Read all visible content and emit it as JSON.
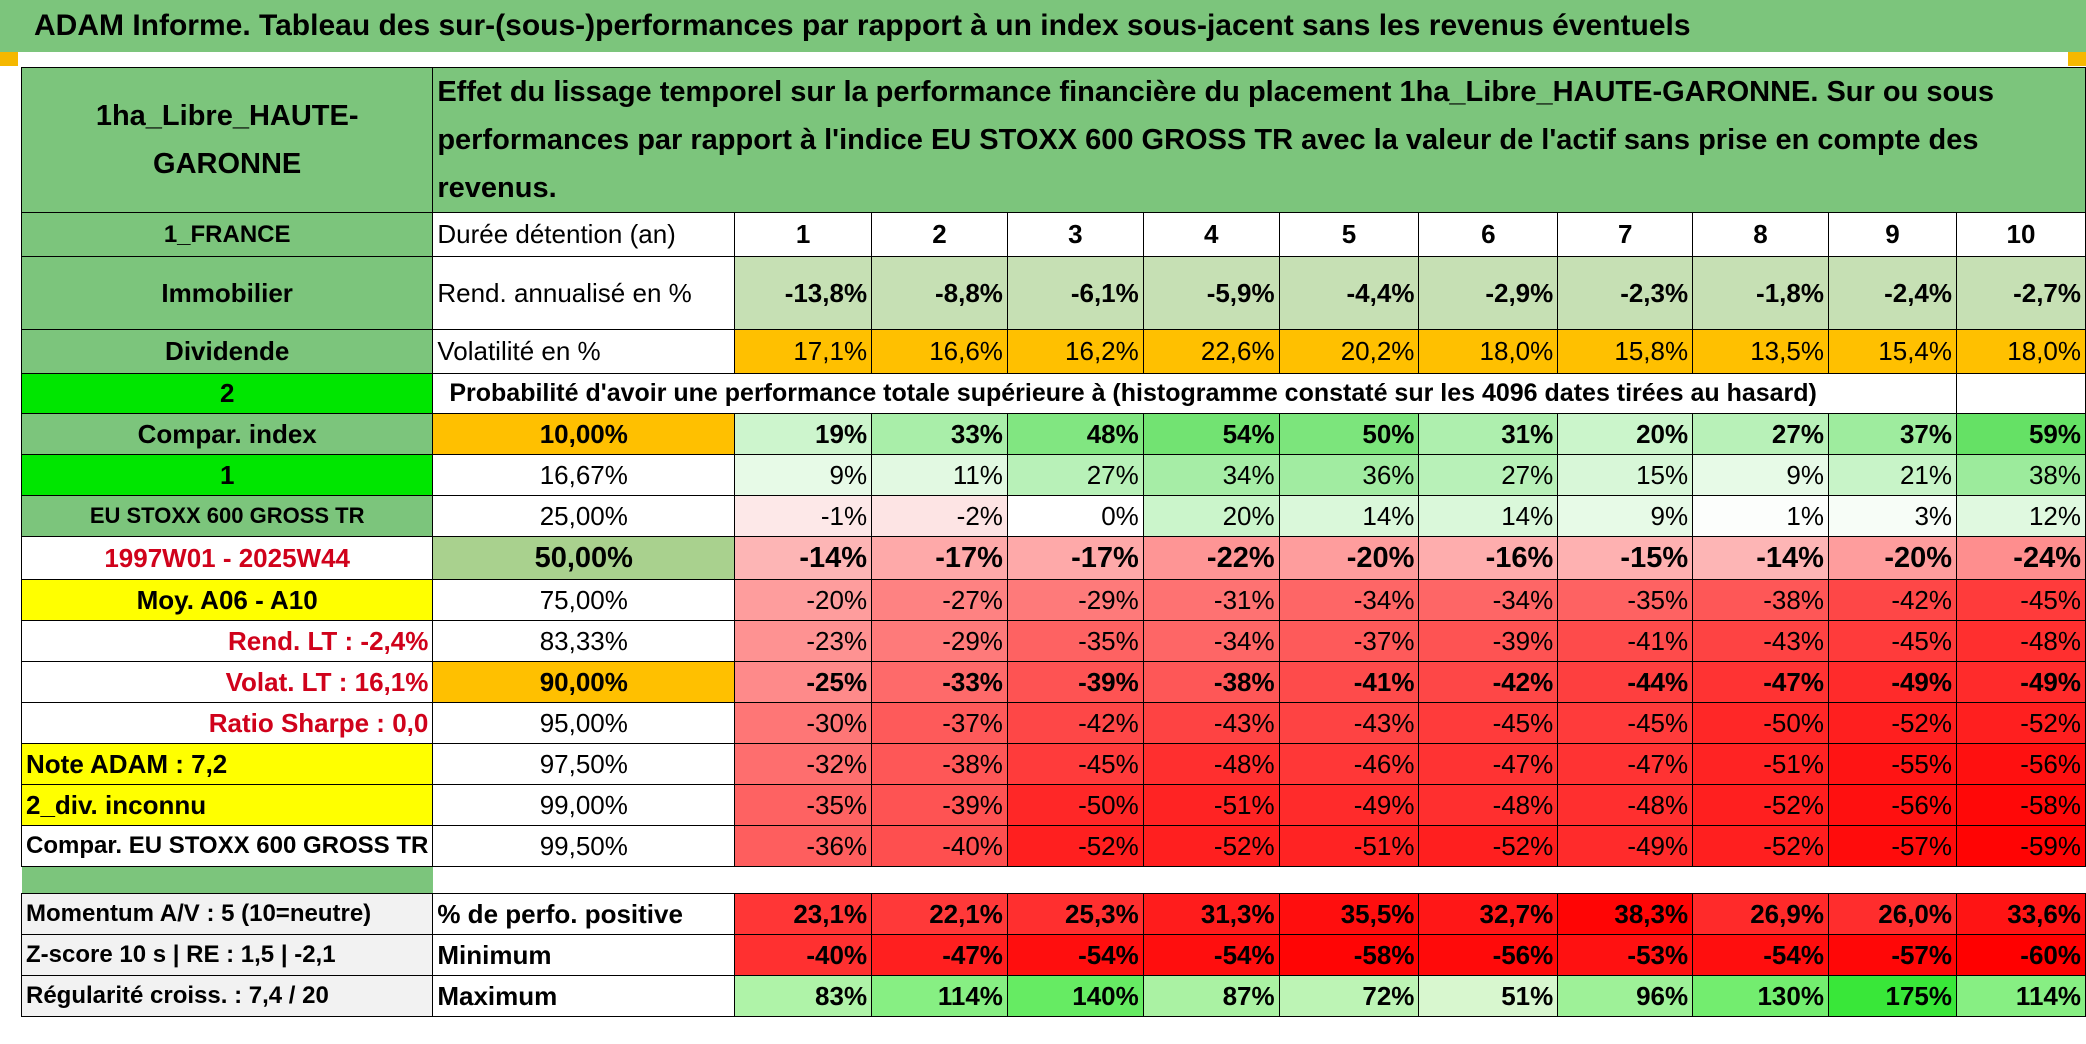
{
  "title": "ADAM Informe. Tableau des sur-(sous-)performances par rapport à un index sous-jacent sans les revenus éventuels",
  "header": {
    "fund_name": "1ha_Libre_HAUTE-GARONNE",
    "description": "Effet du lissage temporel sur la performance financière du placement 1ha_Libre_HAUTE-GARONNE. Sur ou sous performances par rapport à l'indice EU STOXX 600 GROSS TR avec la valeur de l'actif sans prise en compte des revenus."
  },
  "left": {
    "country": "1_FRANCE",
    "asset_class": "Immobilier",
    "income_type": "Dividende",
    "compar_code": "2",
    "compar_index_label": "Compar. index",
    "index_code": "1",
    "index_name": "EU STOXX 600 GROSS TR",
    "period": "1997W01 - 2025W44",
    "moy": "Moy. A06 - A10",
    "rend_lt": "Rend. LT :    -2,4%",
    "volat_lt": "Volat. LT :    16,1%",
    "sharpe": "Ratio Sharpe :    0,0",
    "note": "Note ADAM : 7,2",
    "div": "2_div. inconnu",
    "compar_full": "Compar. EU STOXX 600 GROSS TR",
    "momentum": "Momentum A/V : 5 (10=neutre)",
    "zscore": "Z-score 10 s | RE : 1,5 | -2,1",
    "regularite": "Régularité croiss. : 7,4 / 20"
  },
  "labels": {
    "duration": "Durée détention (an)",
    "rend": "Rend. annualisé en %",
    "vol": "Volatilité en %",
    "prob": "Probabilité d'avoir une performance totale supérieure à (histogramme constaté sur les 4096 dates tirées au hasard)",
    "pos": "% de perfo. positive",
    "min": "Minimum",
    "max": "Maximum"
  },
  "years": [
    "1",
    "2",
    "3",
    "4",
    "5",
    "6",
    "7",
    "8",
    "9",
    "10"
  ],
  "rend": [
    "-13,8%",
    "-8,8%",
    "-6,1%",
    "-5,9%",
    "-4,4%",
    "-2,9%",
    "-2,3%",
    "-1,8%",
    "-2,4%",
    "-2,7%"
  ],
  "vol": [
    "17,1%",
    "16,6%",
    "16,2%",
    "22,6%",
    "20,2%",
    "18,0%",
    "15,8%",
    "13,5%",
    "15,4%",
    "18,0%"
  ],
  "percentiles": [
    {
      "p": "10,00%",
      "vals": [
        "19%",
        "33%",
        "48%",
        "54%",
        "50%",
        "31%",
        "20%",
        "27%",
        "37%",
        "59%"
      ]
    },
    {
      "p": "16,67%",
      "vals": [
        "9%",
        "11%",
        "27%",
        "34%",
        "36%",
        "27%",
        "15%",
        "9%",
        "21%",
        "38%"
      ]
    },
    {
      "p": "25,00%",
      "vals": [
        "-1%",
        "-2%",
        "0%",
        "20%",
        "14%",
        "14%",
        "9%",
        "1%",
        "3%",
        "12%"
      ]
    },
    {
      "p": "50,00%",
      "vals": [
        "-14%",
        "-17%",
        "-17%",
        "-22%",
        "-20%",
        "-16%",
        "-15%",
        "-14%",
        "-20%",
        "-24%"
      ]
    },
    {
      "p": "75,00%",
      "vals": [
        "-20%",
        "-27%",
        "-29%",
        "-31%",
        "-34%",
        "-34%",
        "-35%",
        "-38%",
        "-42%",
        "-45%"
      ]
    },
    {
      "p": "83,33%",
      "vals": [
        "-23%",
        "-29%",
        "-35%",
        "-34%",
        "-37%",
        "-39%",
        "-41%",
        "-43%",
        "-45%",
        "-48%"
      ]
    },
    {
      "p": "90,00%",
      "vals": [
        "-25%",
        "-33%",
        "-39%",
        "-38%",
        "-41%",
        "-42%",
        "-44%",
        "-47%",
        "-49%",
        "-49%"
      ]
    },
    {
      "p": "95,00%",
      "vals": [
        "-30%",
        "-37%",
        "-42%",
        "-43%",
        "-43%",
        "-45%",
        "-45%",
        "-50%",
        "-52%",
        "-52%"
      ]
    },
    {
      "p": "97,50%",
      "vals": [
        "-32%",
        "-38%",
        "-45%",
        "-48%",
        "-46%",
        "-47%",
        "-47%",
        "-51%",
        "-55%",
        "-56%"
      ]
    },
    {
      "p": "99,00%",
      "vals": [
        "-35%",
        "-39%",
        "-50%",
        "-51%",
        "-49%",
        "-48%",
        "-48%",
        "-52%",
        "-56%",
        "-58%"
      ]
    },
    {
      "p": "99,50%",
      "vals": [
        "-36%",
        "-40%",
        "-52%",
        "-52%",
        "-51%",
        "-52%",
        "-49%",
        "-52%",
        "-57%",
        "-59%"
      ]
    }
  ],
  "pos": [
    "23,1%",
    "22,1%",
    "25,3%",
    "31,3%",
    "35,5%",
    "32,7%",
    "38,3%",
    "26,9%",
    "26,0%",
    "33,6%"
  ],
  "min": [
    "-40%",
    "-47%",
    "-54%",
    "-54%",
    "-58%",
    "-56%",
    "-53%",
    "-54%",
    "-57%",
    "-60%"
  ],
  "max": [
    "83%",
    "114%",
    "140%",
    "87%",
    "72%",
    "51%",
    "96%",
    "130%",
    "175%",
    "114%"
  ],
  "colors": {
    "header_green": "#7cc57c",
    "bright_green": "#00e600",
    "yellow": "#ffff00",
    "orange": "#ffc000",
    "rend_bg": "#c6e0b4",
    "text_red": "#d0021b"
  }
}
